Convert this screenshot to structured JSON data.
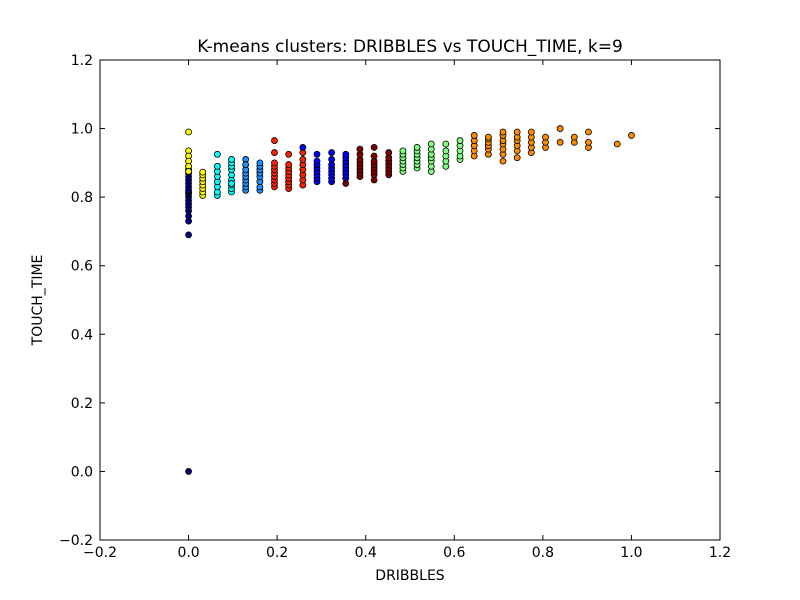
{
  "chart_data": {
    "type": "scatter",
    "title": "K-means clusters: DRIBBLES vs TOUCH_TIME, k=9",
    "xlabel": "DRIBBLES",
    "ylabel": "TOUCH_TIME",
    "xlim": [
      -0.2,
      1.2
    ],
    "ylim": [
      -0.2,
      1.2
    ],
    "xticks": [
      -0.2,
      0.0,
      0.2,
      0.4,
      0.6,
      0.8,
      1.0,
      1.2
    ],
    "yticks": [
      -0.2,
      0.0,
      0.2,
      0.4,
      0.6,
      0.8,
      1.0,
      1.2
    ],
    "xtick_labels": [
      "−0.2",
      "0.0",
      "0.2",
      "0.4",
      "0.6",
      "0.8",
      "1.0",
      "1.2"
    ],
    "ytick_labels": [
      "−0.2",
      "0.0",
      "0.2",
      "0.4",
      "0.6",
      "0.8",
      "1.0",
      "1.2"
    ],
    "grid": false,
    "legend": false,
    "series": [
      {
        "color": "#000080",
        "x": [
          0.0,
          0.0,
          0.0,
          0.0,
          0.0,
          0.0,
          0.0,
          0.0,
          0.0,
          0.0,
          0.0,
          0.0,
          0.0,
          0.0,
          0.0,
          0.0,
          0.0,
          0.0
        ],
        "y": [
          0.0,
          0.69,
          0.73,
          0.745,
          0.76,
          0.77,
          0.78,
          0.79,
          0.8,
          0.81,
          0.815,
          0.82,
          0.83,
          0.84,
          0.85,
          0.86,
          0.87,
          0.88
        ]
      },
      {
        "color": "#ffff00",
        "x": [
          0.0,
          0.0,
          0.0,
          0.0,
          0.0,
          0.0,
          0.032,
          0.032,
          0.032,
          0.032,
          0.032,
          0.032,
          0.032,
          0.032
        ],
        "y": [
          0.99,
          0.935,
          0.92,
          0.905,
          0.89,
          0.875,
          0.805,
          0.815,
          0.825,
          0.835,
          0.845,
          0.855,
          0.865,
          0.873
        ]
      },
      {
        "color": "#00ffff",
        "x": [
          0.065,
          0.065,
          0.065,
          0.065,
          0.065,
          0.065,
          0.065,
          0.065,
          0.097,
          0.097,
          0.097,
          0.097,
          0.097,
          0.097,
          0.097,
          0.097,
          0.097,
          0.097
        ],
        "y": [
          0.925,
          0.805,
          0.815,
          0.83,
          0.845,
          0.86,
          0.875,
          0.89,
          0.815,
          0.825,
          0.835,
          0.85,
          0.865,
          0.88,
          0.89,
          0.9,
          0.91,
          0.84
        ]
      },
      {
        "color": "#1e90ff",
        "x": [
          0.129,
          0.129,
          0.129,
          0.129,
          0.129,
          0.129,
          0.129,
          0.129,
          0.129,
          0.161,
          0.161,
          0.161,
          0.161,
          0.161,
          0.161,
          0.161,
          0.161
        ],
        "y": [
          0.91,
          0.82,
          0.83,
          0.84,
          0.85,
          0.86,
          0.87,
          0.88,
          0.895,
          0.82,
          0.83,
          0.845,
          0.86,
          0.87,
          0.88,
          0.89,
          0.9
        ]
      },
      {
        "color": "#ff2000",
        "x": [
          0.194,
          0.194,
          0.194,
          0.194,
          0.194,
          0.194,
          0.194,
          0.194,
          0.194,
          0.194,
          0.226,
          0.226,
          0.226,
          0.226,
          0.226,
          0.226,
          0.226,
          0.226,
          0.226,
          0.258,
          0.258,
          0.258,
          0.258,
          0.258,
          0.258,
          0.258
        ],
        "y": [
          0.965,
          0.93,
          0.83,
          0.84,
          0.85,
          0.86,
          0.87,
          0.88,
          0.89,
          0.9,
          0.825,
          0.835,
          0.845,
          0.855,
          0.865,
          0.875,
          0.885,
          0.895,
          0.925,
          0.835,
          0.85,
          0.865,
          0.88,
          0.895,
          0.91,
          0.93
        ]
      },
      {
        "color": "#0000ff",
        "x": [
          0.258,
          0.29,
          0.29,
          0.29,
          0.29,
          0.29,
          0.29,
          0.29,
          0.29,
          0.323,
          0.323,
          0.323,
          0.323,
          0.323,
          0.323,
          0.323,
          0.323,
          0.355,
          0.355,
          0.355,
          0.355,
          0.355,
          0.355,
          0.355,
          0.355
        ],
        "y": [
          0.945,
          0.845,
          0.855,
          0.865,
          0.875,
          0.885,
          0.895,
          0.905,
          0.925,
          0.845,
          0.855,
          0.865,
          0.875,
          0.885,
          0.895,
          0.91,
          0.93,
          0.855,
          0.865,
          0.875,
          0.885,
          0.895,
          0.905,
          0.915,
          0.925
        ]
      },
      {
        "color": "#800000",
        "x": [
          0.355,
          0.387,
          0.387,
          0.387,
          0.387,
          0.387,
          0.387,
          0.387,
          0.387,
          0.419,
          0.419,
          0.419,
          0.419,
          0.419,
          0.419,
          0.419,
          0.419,
          0.452,
          0.452,
          0.452,
          0.452,
          0.452,
          0.452,
          0.452
        ],
        "y": [
          0.84,
          0.86,
          0.87,
          0.88,
          0.89,
          0.9,
          0.91,
          0.925,
          0.94,
          0.85,
          0.865,
          0.875,
          0.885,
          0.895,
          0.905,
          0.92,
          0.945,
          0.865,
          0.875,
          0.885,
          0.895,
          0.905,
          0.915,
          0.93
        ]
      },
      {
        "color": "#80ff80",
        "x": [
          0.484,
          0.484,
          0.484,
          0.484,
          0.484,
          0.484,
          0.484,
          0.516,
          0.516,
          0.516,
          0.516,
          0.516,
          0.516,
          0.516,
          0.548,
          0.548,
          0.548,
          0.548,
          0.548,
          0.548,
          0.548,
          0.581,
          0.581,
          0.581,
          0.581,
          0.581,
          0.613,
          0.613,
          0.613,
          0.613,
          0.613
        ],
        "y": [
          0.875,
          0.885,
          0.895,
          0.905,
          0.915,
          0.925,
          0.935,
          0.885,
          0.895,
          0.905,
          0.915,
          0.925,
          0.935,
          0.945,
          0.875,
          0.89,
          0.905,
          0.915,
          0.925,
          0.94,
          0.955,
          0.89,
          0.905,
          0.92,
          0.935,
          0.955,
          0.91,
          0.92,
          0.935,
          0.95,
          0.965
        ]
      },
      {
        "color": "#ff8c00",
        "x": [
          0.645,
          0.645,
          0.645,
          0.645,
          0.645,
          0.677,
          0.677,
          0.677,
          0.677,
          0.677,
          0.677,
          0.71,
          0.71,
          0.71,
          0.71,
          0.71,
          0.71,
          0.71,
          0.742,
          0.742,
          0.742,
          0.742,
          0.742,
          0.742,
          0.774,
          0.774,
          0.774,
          0.774,
          0.774,
          0.806,
          0.806,
          0.806,
          0.839,
          0.839,
          0.871,
          0.871,
          0.903,
          0.903,
          0.903,
          0.968,
          1.0
        ],
        "y": [
          0.92,
          0.935,
          0.95,
          0.965,
          0.98,
          0.925,
          0.94,
          0.95,
          0.96,
          0.97,
          0.975,
          0.905,
          0.925,
          0.94,
          0.955,
          0.965,
          0.98,
          0.99,
          0.915,
          0.935,
          0.95,
          0.965,
          0.975,
          0.99,
          0.93,
          0.945,
          0.96,
          0.975,
          0.99,
          0.945,
          0.96,
          0.975,
          0.96,
          1.0,
          0.96,
          0.975,
          0.945,
          0.96,
          0.99,
          0.955,
          0.98
        ]
      }
    ]
  }
}
